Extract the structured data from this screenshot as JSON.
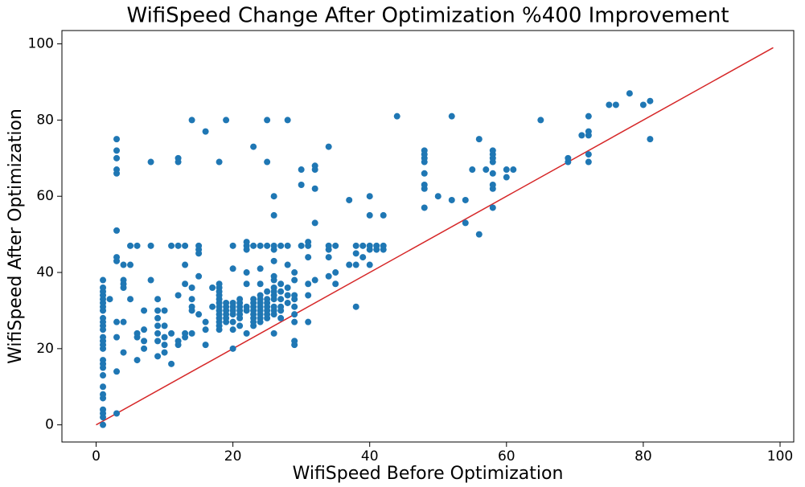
{
  "chart_data": {
    "type": "scatter",
    "title": "WifiSpeed Change After Optimization %400 Improvement",
    "x_label": "WifiSpeed Before Optimization",
    "y_label": "WifiSpeed After Optimization",
    "color": "#1f77b4",
    "x": [
      1,
      1,
      1,
      1,
      1,
      1,
      1,
      1,
      1,
      1,
      1,
      1,
      1,
      1,
      1,
      1,
      1,
      1,
      1,
      1,
      1,
      1,
      1,
      1,
      1,
      1,
      1,
      2,
      3,
      3,
      3,
      3,
      3,
      3,
      3,
      3,
      3,
      3,
      3,
      3,
      4,
      4,
      4,
      4,
      4,
      4,
      5,
      5,
      5,
      6,
      6,
      6,
      6,
      7,
      7,
      7,
      7,
      8,
      8,
      8,
      9,
      9,
      9,
      9,
      9,
      9,
      9,
      10,
      10,
      10,
      10,
      10,
      11,
      11,
      11,
      12,
      12,
      12,
      12,
      12,
      12,
      13,
      13,
      13,
      13,
      13,
      14,
      14,
      14,
      14,
      14,
      14,
      15,
      15,
      15,
      15,
      15,
      16,
      16,
      16,
      16,
      17,
      17,
      18,
      18,
      18,
      18,
      18,
      18,
      18,
      18,
      18,
      18,
      18,
      18,
      18,
      18,
      19,
      19,
      19,
      19,
      19,
      19,
      19,
      20,
      20,
      20,
      20,
      20,
      20,
      20,
      20,
      20,
      21,
      21,
      21,
      21,
      21,
      21,
      21,
      22,
      22,
      22,
      22,
      22,
      22,
      22,
      22,
      23,
      23,
      23,
      23,
      23,
      23,
      23,
      23,
      23,
      23,
      24,
      24,
      24,
      24,
      24,
      24,
      24,
      24,
      24,
      24,
      24,
      25,
      25,
      25,
      25,
      25,
      25,
      25,
      25,
      25,
      25,
      26,
      26,
      26,
      26,
      26,
      26,
      26,
      26,
      26,
      26,
      26,
      26,
      26,
      26,
      26,
      27,
      27,
      27,
      27,
      27,
      27,
      27,
      28,
      28,
      28,
      28,
      28,
      28,
      29,
      29,
      29,
      29,
      29,
      29,
      29,
      29,
      29,
      30,
      30,
      30,
      31,
      31,
      31,
      31,
      31,
      31,
      32,
      32,
      32,
      32,
      32,
      34,
      34,
      34,
      34,
      34,
      35,
      35,
      35,
      37,
      37,
      38,
      38,
      38,
      38,
      39,
      39,
      40,
      40,
      40,
      40,
      40,
      41,
      41,
      42,
      42,
      42,
      44,
      48,
      48,
      48,
      48,
      48,
      48,
      48,
      48,
      50,
      52,
      52,
      54,
      54,
      55,
      56,
      56,
      57,
      58,
      58,
      58,
      58,
      58,
      58,
      58,
      58,
      60,
      60,
      61,
      65,
      69,
      69,
      71,
      72,
      72,
      72,
      72,
      72,
      75,
      76,
      78,
      80,
      81,
      81
    ],
    "y": [
      0,
      2,
      3,
      4,
      7,
      8,
      10,
      13,
      15,
      16,
      17,
      20,
      21,
      22,
      23,
      25,
      26,
      27,
      28,
      30,
      31,
      32,
      33,
      34,
      35,
      36,
      38,
      33,
      3,
      14,
      23,
      27,
      43,
      44,
      51,
      66,
      67,
      70,
      72,
      75,
      19,
      27,
      36,
      37,
      38,
      42,
      33,
      42,
      47,
      17,
      23,
      24,
      47,
      20,
      22,
      25,
      30,
      38,
      47,
      69,
      18,
      22,
      24,
      26,
      28,
      30,
      33,
      19,
      21,
      23,
      26,
      30,
      16,
      24,
      47,
      21,
      22,
      34,
      47,
      69,
      70,
      23,
      24,
      37,
      42,
      47,
      24,
      30,
      31,
      33,
      36,
      80,
      29,
      39,
      45,
      46,
      47,
      21,
      25,
      27,
      77,
      31,
      36,
      25,
      26,
      27,
      28,
      29,
      30,
      31,
      32,
      33,
      34,
      35,
      36,
      37,
      69,
      27,
      28,
      29,
      30,
      31,
      32,
      80,
      20,
      25,
      27,
      29,
      30,
      31,
      32,
      41,
      47,
      26,
      28,
      29,
      30,
      31,
      32,
      33,
      24,
      30,
      31,
      37,
      40,
      46,
      47,
      48,
      26,
      27,
      28,
      29,
      30,
      31,
      32,
      33,
      47,
      73,
      27,
      28,
      29,
      30,
      31,
      32,
      33,
      34,
      37,
      41,
      47,
      28,
      29,
      30,
      31,
      32,
      33,
      35,
      47,
      69,
      80,
      24,
      29,
      30,
      31,
      33,
      34,
      35,
      36,
      38,
      39,
      43,
      46,
      47,
      55,
      60,
      28,
      30,
      31,
      33,
      35,
      37,
      47,
      32,
      34,
      36,
      42,
      47,
      80,
      21,
      22,
      27,
      29,
      31,
      33,
      34,
      38,
      40,
      47,
      63,
      67,
      27,
      34,
      37,
      44,
      47,
      48,
      38,
      53,
      62,
      67,
      68,
      39,
      44,
      46,
      47,
      73,
      37,
      40,
      47,
      42,
      59,
      31,
      42,
      45,
      47,
      44,
      47,
      42,
      46,
      47,
      55,
      60,
      46,
      47,
      46,
      47,
      55,
      81,
      57,
      62,
      63,
      66,
      69,
      70,
      71,
      72,
      60,
      59,
      81,
      53,
      59,
      67,
      50,
      75,
      67,
      57,
      62,
      63,
      66,
      69,
      70,
      71,
      72,
      65,
      67,
      67,
      80,
      69,
      70,
      76,
      69,
      71,
      76,
      77,
      81,
      84,
      84,
      87,
      84,
      75,
      85
    ],
    "line": {
      "x": [
        0,
        99
      ],
      "y": [
        0,
        99
      ],
      "color": "#d62728"
    },
    "xlim": [
      -5,
      102
    ],
    "ylim": [
      -4.5,
      103.5
    ],
    "xticks": [
      0,
      20,
      40,
      60,
      80,
      100
    ],
    "yticks": [
      0,
      20,
      40,
      60,
      80,
      100
    ],
    "grid": false
  }
}
